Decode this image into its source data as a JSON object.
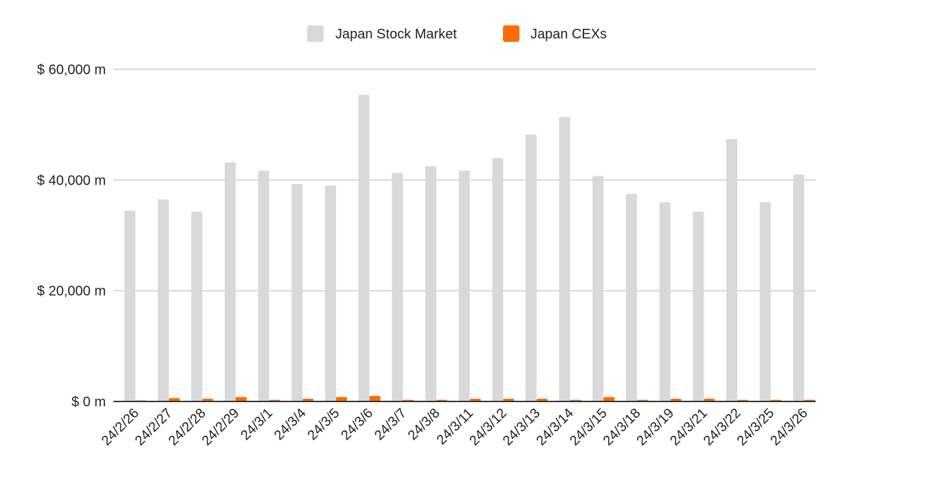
{
  "chart_data": {
    "type": "bar",
    "title": "",
    "xlabel": "",
    "ylabel": "",
    "categories": [
      "24/2/26",
      "24/2/27",
      "24/2/28",
      "24/2/29",
      "24/3/1",
      "24/3/4",
      "24/3/5",
      "24/3/6",
      "24/3/7",
      "24/3/8",
      "24/3/11",
      "24/3/12",
      "24/3/13",
      "24/3/14",
      "24/3/15",
      "24/3/18",
      "24/3/19",
      "24/3/21",
      "24/3/22",
      "24/3/25",
      "24/3/26"
    ],
    "series": [
      {
        "name": "Japan Stock Market",
        "color": "#d9d9d9",
        "values": [
          34500,
          36500,
          34300,
          43200,
          41700,
          39300,
          39000,
          55400,
          41300,
          42500,
          41700,
          44000,
          48200,
          51400,
          40700,
          37500,
          36000,
          34300,
          47400,
          36000,
          41000
        ]
      },
      {
        "name": "Japan CEXs",
        "color": "#ff6d01",
        "values": [
          100,
          600,
          500,
          800,
          300,
          500,
          800,
          1000,
          300,
          300,
          500,
          500,
          500,
          300,
          800,
          300,
          500,
          500,
          300,
          300,
          300
        ]
      }
    ],
    "ylim": [
      0,
      60000
    ],
    "yticks": [
      0,
      20000,
      40000,
      60000
    ],
    "ytick_labels": [
      "$ 0 m",
      "$ 20,000 m",
      "$ 40,000 m",
      "$ 60,000 m"
    ],
    "grid": true,
    "legend_position": "top-center"
  }
}
